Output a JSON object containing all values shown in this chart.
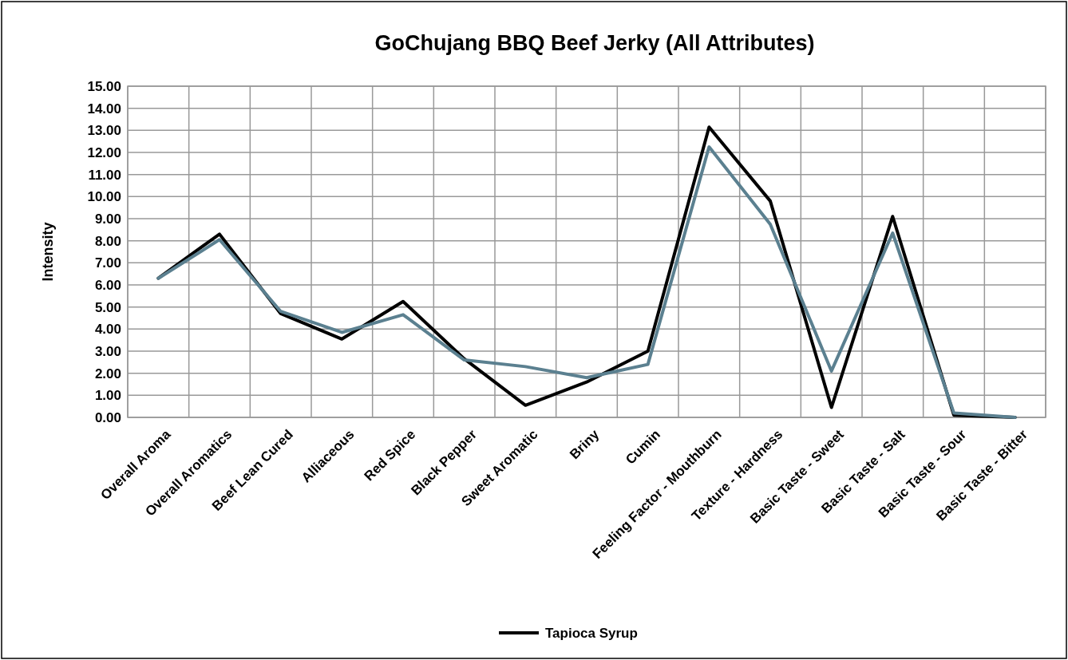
{
  "chart_data": {
    "type": "line",
    "title": "GoChujang BBQ Beef Jerky (All Attributes)",
    "ylabel": "Intensity",
    "categories": [
      "Overall Aroma",
      "Overall Aromatics",
      "Beef  Lean  Cured",
      "Alliaceous",
      "Red Spice",
      "Black Pepper",
      "Sweet Aromatic",
      "Briny",
      "Cumin",
      "Feeling Factor - Mouthburn",
      "Texture - Hardness",
      "Basic Taste - Sweet",
      "Basic Taste - Salt",
      "Basic Taste - Sour",
      "Basic Taste - Bitter"
    ],
    "series": [
      {
        "name": "Tapioca Syrup",
        "color": "#000000",
        "values": [
          6.3,
          8.3,
          4.7,
          3.55,
          5.25,
          2.65,
          0.55,
          1.6,
          3.0,
          13.15,
          9.8,
          0.45,
          9.1,
          0.1,
          0.0
        ]
      },
      {
        "color": "#5b8090",
        "values": [
          6.3,
          8.05,
          4.8,
          3.85,
          4.65,
          2.6,
          2.3,
          1.8,
          2.4,
          12.25,
          8.75,
          2.1,
          8.35,
          0.2,
          0.0
        ]
      }
    ],
    "ylim": [
      0,
      15
    ],
    "yticks": [
      {
        "value": 0,
        "label": "0.00"
      },
      {
        "value": 1,
        "label": "1.00"
      },
      {
        "value": 2,
        "label": "2.00"
      },
      {
        "value": 3,
        "label": "3.00"
      },
      {
        "value": 4,
        "label": "4.00"
      },
      {
        "value": 5,
        "label": "5.00"
      },
      {
        "value": 6,
        "label": "6.00"
      },
      {
        "value": 7,
        "label": "7.00"
      },
      {
        "value": 8,
        "label": "8.00"
      },
      {
        "value": 9,
        "label": "9.00"
      },
      {
        "value": 10,
        "label": "10.00"
      },
      {
        "value": 11,
        "label": "11.00"
      },
      {
        "value": 12,
        "label": "12.00"
      },
      {
        "value": 13,
        "label": "13.00"
      },
      {
        "value": 14,
        "label": "14.00"
      },
      {
        "value": 15,
        "label": "15.00"
      }
    ],
    "grid": true,
    "legend": "bottom",
    "marker": "none",
    "line_style": "solid"
  }
}
